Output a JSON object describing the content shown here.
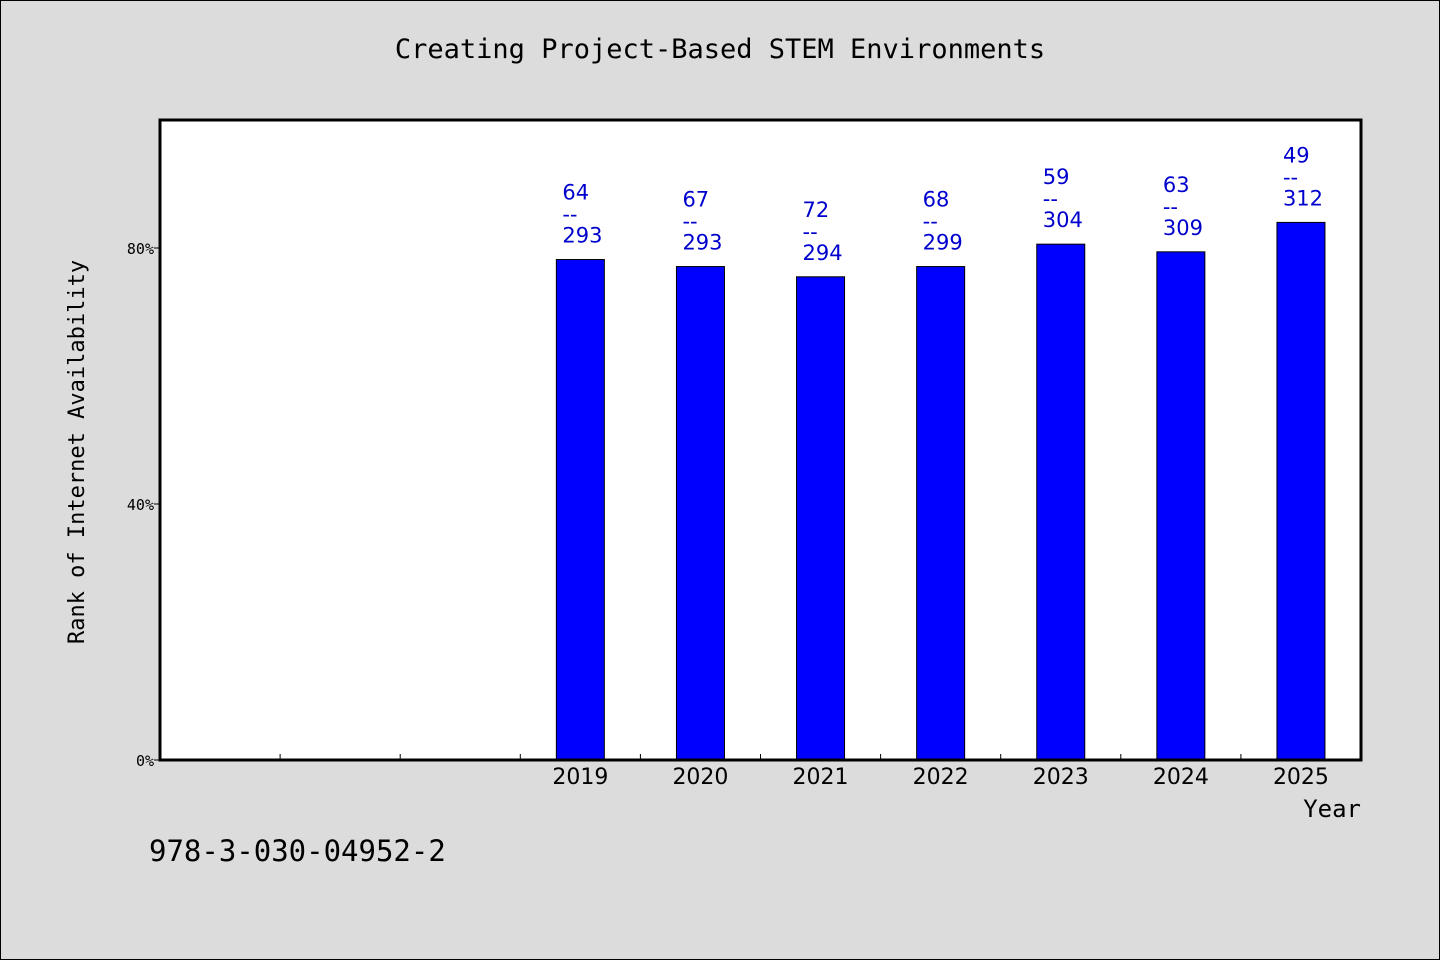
{
  "chart_data": {
    "type": "bar",
    "title": "Creating Project-Based STEM Environments",
    "xlabel": "Year",
    "ylabel": "Rank of Internet Availability",
    "categories": [
      "",
      "",
      "",
      "2019",
      "2020",
      "2021",
      "2022",
      "2023",
      "2024",
      "2025"
    ],
    "values": [
      null,
      null,
      null,
      78.2,
      77.1,
      75.5,
      77.1,
      80.6,
      79.4,
      84.0
    ],
    "data_labels": [
      null,
      null,
      null,
      {
        "top": "64",
        "sep": "--",
        "bottom": "293"
      },
      {
        "top": "67",
        "sep": "--",
        "bottom": "293"
      },
      {
        "top": "72",
        "sep": "--",
        "bottom": "294"
      },
      {
        "top": "68",
        "sep": "--",
        "bottom": "299"
      },
      {
        "top": "59",
        "sep": "--",
        "bottom": "304"
      },
      {
        "top": "63",
        "sep": "--",
        "bottom": "309"
      },
      {
        "top": "49",
        "sep": "--",
        "bottom": "312"
      }
    ],
    "yticks": [
      0,
      40,
      80
    ],
    "ytick_labels": [
      "0%",
      "40%",
      "80%"
    ],
    "ylim": [
      0,
      100
    ],
    "grid": false,
    "legend": "none",
    "colors": {
      "bar_fill": "#0000ff",
      "bar_edge": "#000000",
      "label_color": "#0000cd",
      "plot_bg": "#ffffff",
      "page_bg": "#dcdcdc"
    }
  },
  "footer": {
    "code": "978-3-030-04952-2"
  }
}
